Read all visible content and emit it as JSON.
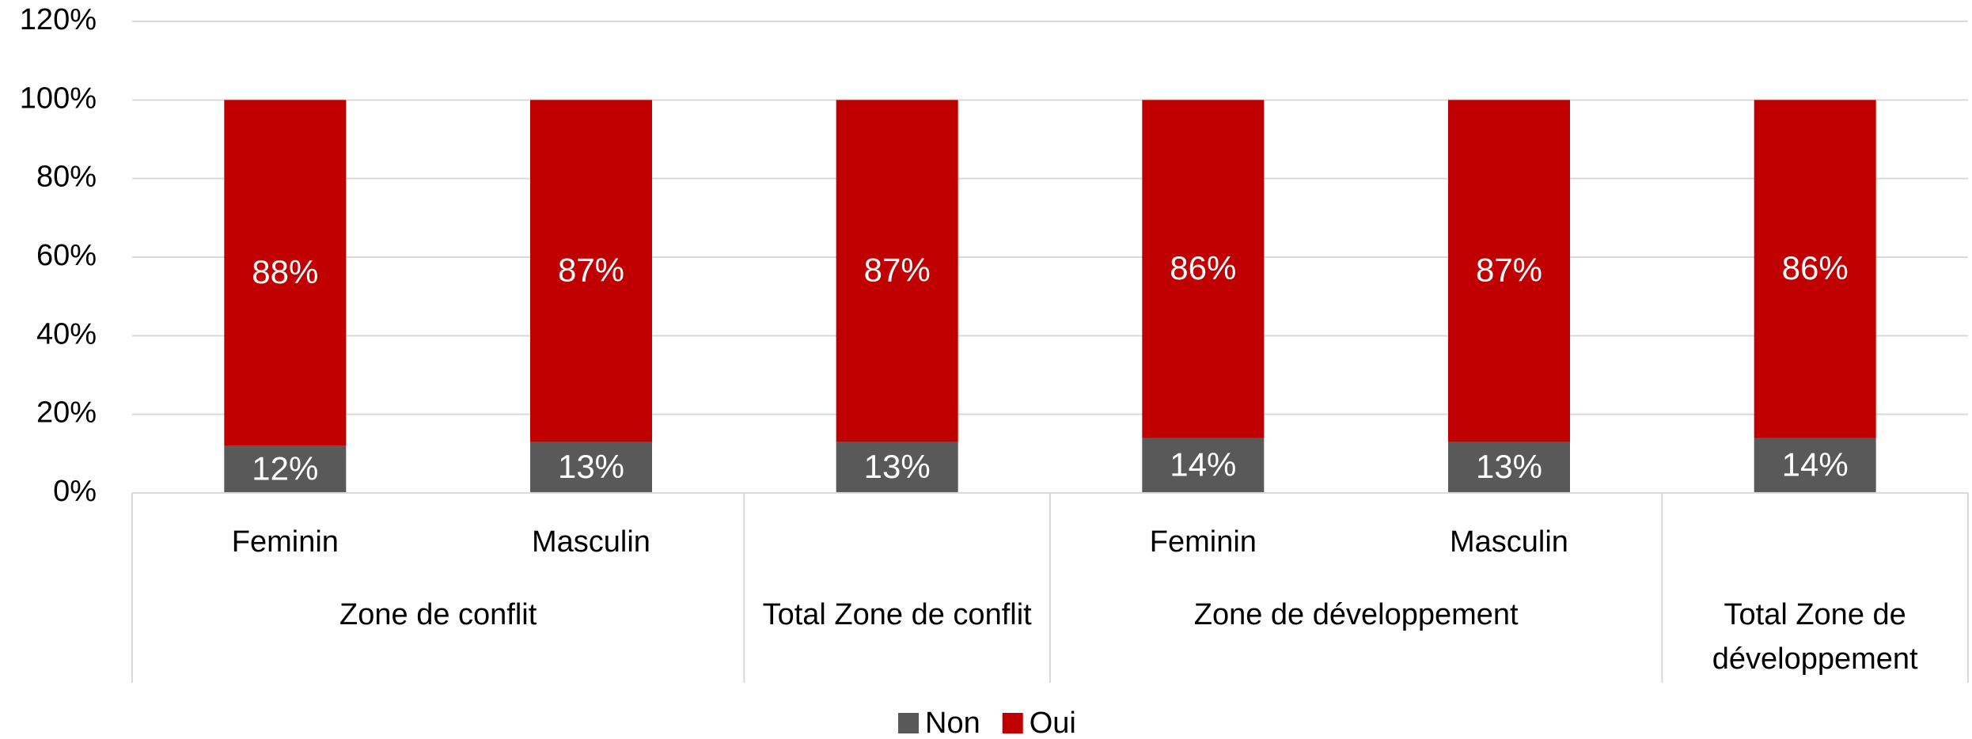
{
  "chart_data": {
    "type": "stacked_bar",
    "categories": [
      {
        "group": "Zone de conflit",
        "label": "Feminin"
      },
      {
        "group": "Zone de conflit",
        "label": "Masculin"
      },
      {
        "group": "Total Zone de conflit",
        "label": null
      },
      {
        "group": "Zone de développement",
        "label": "Feminin"
      },
      {
        "group": "Zone de développement",
        "label": "Masculin"
      },
      {
        "group": "Total Zone de développement",
        "label": null
      }
    ],
    "series": [
      {
        "name": "Non",
        "color": "#595959",
        "values": [
          12,
          13,
          13,
          14,
          13,
          14
        ],
        "value_labels": [
          "12%",
          "13%",
          "13%",
          "14%",
          "13%",
          "14%"
        ]
      },
      {
        "name": "Oui",
        "color": "#c00000",
        "values": [
          88,
          87,
          87,
          86,
          87,
          86
        ],
        "value_labels": [
          "88%",
          "87%",
          "87%",
          "86%",
          "87%",
          "86%"
        ]
      }
    ],
    "ylim": [
      0,
      120
    ],
    "yticks": [
      {
        "value": 0,
        "label": "0%"
      },
      {
        "value": 20,
        "label": "20%"
      },
      {
        "value": 40,
        "label": "40%"
      },
      {
        "value": 60,
        "label": "60%"
      },
      {
        "value": 80,
        "label": "80%"
      },
      {
        "value": 100,
        "label": "100%"
      },
      {
        "value": 120,
        "label": "120%"
      }
    ],
    "grid": true,
    "legend": "bottom"
  }
}
